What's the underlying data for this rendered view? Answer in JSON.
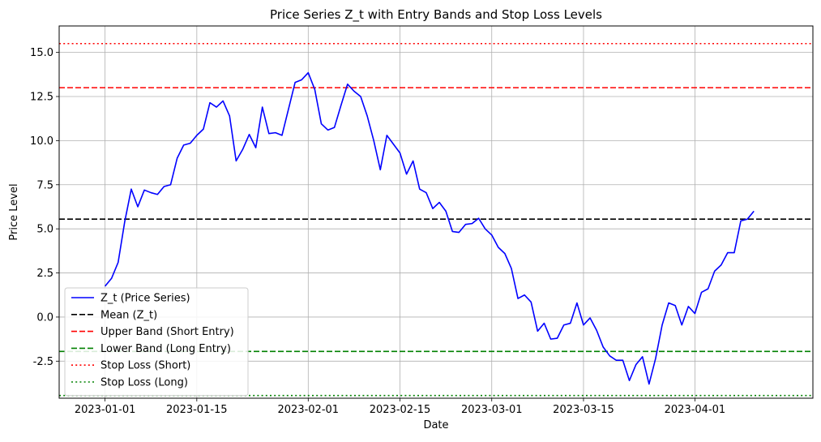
{
  "chart_data": {
    "type": "line",
    "title": "Price Series Z_t with Entry Bands and Stop Loss Levels",
    "xlabel": "Date",
    "ylabel": "Price Level",
    "xlim": [
      "2022-12-25",
      "2023-04-19"
    ],
    "ylim": [
      -4.6,
      16.5
    ],
    "grid": true,
    "legend_position": "lower-left",
    "x_ticks": [
      "2023-01-01",
      "2023-01-15",
      "2023-02-01",
      "2023-02-15",
      "2023-03-01",
      "2023-03-15",
      "2023-04-01"
    ],
    "y_ticks": [
      -2.5,
      0.0,
      2.5,
      5.0,
      7.5,
      10.0,
      12.5,
      15.0
    ],
    "series": [
      {
        "name": "Z_t (Price Series)",
        "color": "#0000ff",
        "style": "solid",
        "start_date": "2023-01-01",
        "values": [
          1.75,
          2.2,
          3.1,
          5.4,
          7.25,
          6.25,
          7.2,
          7.05,
          6.95,
          7.4,
          7.5,
          9.0,
          9.75,
          9.85,
          10.3,
          10.65,
          12.15,
          11.9,
          12.25,
          11.4,
          8.85,
          9.5,
          10.35,
          9.6,
          11.9,
          10.4,
          10.45,
          10.3,
          11.8,
          13.3,
          13.45,
          13.85,
          12.9,
          10.95,
          10.6,
          10.75,
          12.0,
          13.2,
          12.8,
          12.5,
          11.4,
          10.0,
          8.35,
          10.3,
          9.8,
          9.3,
          8.1,
          8.85,
          7.25,
          7.05,
          6.15,
          6.5,
          6.0,
          4.85,
          4.8,
          5.25,
          5.3,
          5.6,
          5.0,
          4.65,
          3.95,
          3.6,
          2.75,
          1.05,
          1.25,
          0.85,
          -0.8,
          -0.35,
          -1.25,
          -1.2,
          -0.45,
          -0.35,
          0.8,
          -0.45,
          -0.05,
          -0.75,
          -1.7,
          -2.2,
          -2.45,
          -2.45,
          -3.6,
          -2.7,
          -2.25,
          -3.8,
          -2.35,
          -0.45,
          0.8,
          0.65,
          -0.45,
          0.6,
          0.2,
          1.4,
          1.6,
          2.6,
          2.95,
          3.65,
          3.65,
          5.45,
          5.55,
          6.0
        ]
      },
      {
        "name": "Mean (Z_t)",
        "color": "#000000",
        "style": "dashed",
        "y": 5.55
      },
      {
        "name": "Upper Band (Short Entry)",
        "color": "#ff0000",
        "style": "dashed",
        "y": 13.0
      },
      {
        "name": "Lower Band (Long Entry)",
        "color": "#008000",
        "style": "dashed",
        "y": -1.95
      },
      {
        "name": "Stop Loss (Short)",
        "color": "#ff0000",
        "style": "dotted",
        "y": 15.5
      },
      {
        "name": "Stop Loss (Long)",
        "color": "#008000",
        "style": "dotted",
        "y": -4.45
      }
    ]
  }
}
